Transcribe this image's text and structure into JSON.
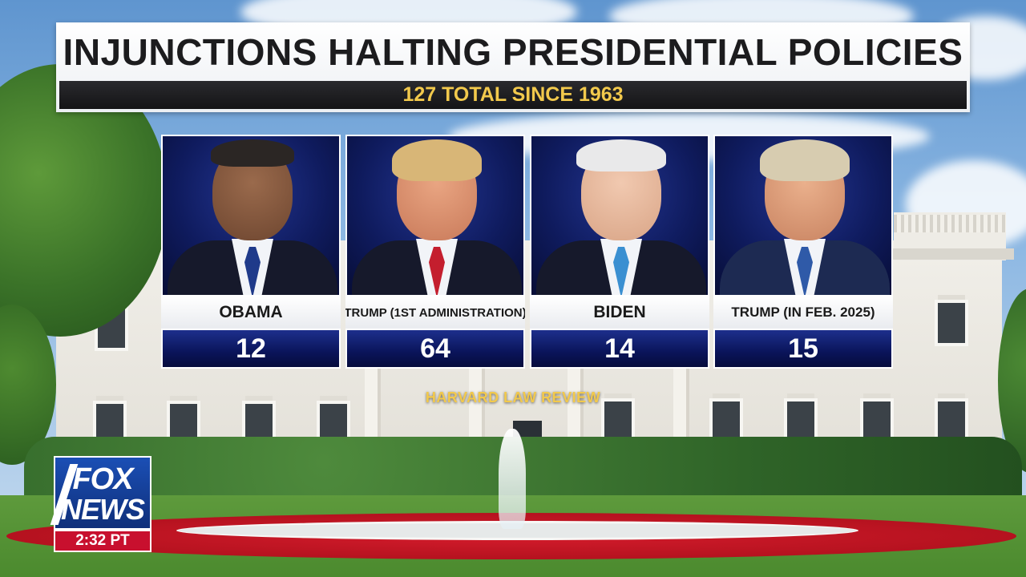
{
  "title": "INJUNCTIONS HALTING PRESIDENTIAL POLICIES",
  "subtitle": "127 TOTAL SINCE 1963",
  "cards": [
    {
      "name": "OBAMA",
      "count": "12"
    },
    {
      "name": "TRUMP (1ST ADMINISTRATION)",
      "count": "64"
    },
    {
      "name": "BIDEN",
      "count": "14"
    },
    {
      "name": "TRUMP (IN FEB. 2025)",
      "count": "15"
    }
  ],
  "source": "HARVARD LAW REVIEW",
  "bug": {
    "line1": "FOX",
    "line2": "NEWS",
    "time": "2:32 PT"
  },
  "colors": {
    "accent_gold": "#f2c94c",
    "card_blue": "#0f1b5e",
    "fox_red": "#c8102e",
    "fox_blue": "#1b4fb5"
  }
}
